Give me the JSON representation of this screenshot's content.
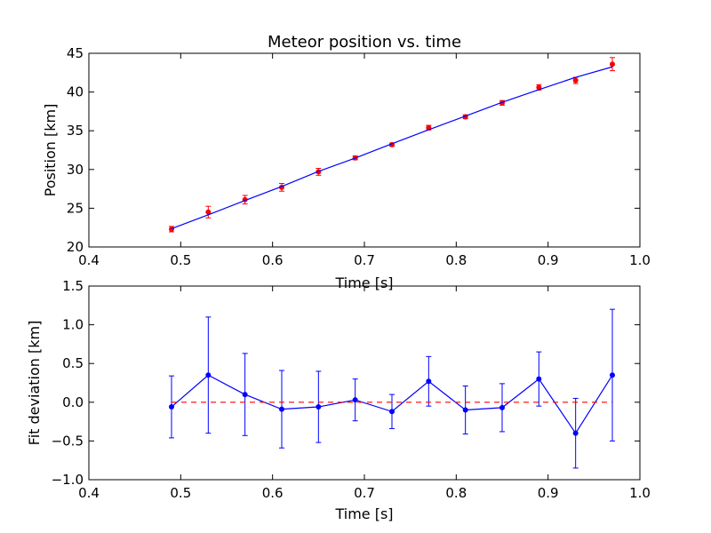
{
  "chart_data": [
    {
      "type": "scatter",
      "title": "Meteor position vs. time",
      "xlabel": "Time [s]",
      "ylabel": "Position [km]",
      "xlim": [
        0.4,
        1.0
      ],
      "ylim": [
        20,
        45
      ],
      "xticks": [
        "0.4",
        "0.5",
        "0.6",
        "0.7",
        "0.8",
        "0.9",
        "1.0"
      ],
      "yticks": [
        "20",
        "25",
        "30",
        "35",
        "40",
        "45"
      ],
      "grid": false,
      "series": [
        {
          "kind": "errorbar-points",
          "color": "#ff0000",
          "x": [
            0.49,
            0.53,
            0.57,
            0.61,
            0.65,
            0.69,
            0.73,
            0.77,
            0.81,
            0.85,
            0.89,
            0.93,
            0.97
          ],
          "y": [
            22.3,
            24.5,
            26.1,
            27.7,
            29.7,
            31.5,
            33.2,
            35.4,
            36.8,
            38.6,
            40.6,
            41.5,
            43.6
          ],
          "err": [
            0.35,
            0.75,
            0.55,
            0.5,
            0.45,
            0.25,
            0.2,
            0.3,
            0.25,
            0.3,
            0.35,
            0.4,
            0.85
          ]
        },
        {
          "kind": "line",
          "color": "#0000ff",
          "x": [
            0.49,
            0.53,
            0.57,
            0.61,
            0.65,
            0.69,
            0.73,
            0.77,
            0.81,
            0.85,
            0.89,
            0.93,
            0.97
          ],
          "y": [
            22.36,
            24.15,
            26.0,
            27.8,
            29.75,
            31.47,
            33.32,
            35.13,
            36.89,
            38.67,
            40.3,
            41.9,
            43.25
          ]
        }
      ]
    },
    {
      "type": "line",
      "title": "",
      "xlabel": "Time [s]",
      "ylabel": "Fit deviation [km]",
      "xlim": [
        0.4,
        1.0
      ],
      "ylim": [
        -1.0,
        1.5
      ],
      "xticks": [
        "0.4",
        "0.5",
        "0.6",
        "0.7",
        "0.8",
        "0.9",
        "1.0"
      ],
      "yticks": [
        "−1.0",
        "−0.5",
        "0.0",
        "0.5",
        "1.0",
        "1.5"
      ],
      "grid": false,
      "series": [
        {
          "kind": "errorbar-line",
          "color": "#0000ff",
          "x": [
            0.49,
            0.53,
            0.57,
            0.61,
            0.65,
            0.69,
            0.73,
            0.77,
            0.81,
            0.85,
            0.89,
            0.93,
            0.97
          ],
          "y": [
            -0.06,
            0.35,
            0.1,
            -0.09,
            -0.06,
            0.03,
            -0.12,
            0.27,
            -0.1,
            -0.07,
            0.3,
            -0.4,
            0.35
          ],
          "err": [
            0.4,
            0.75,
            0.53,
            0.5,
            0.46,
            0.27,
            0.22,
            0.32,
            0.31,
            0.31,
            0.35,
            0.45,
            0.85
          ]
        },
        {
          "kind": "reference-line",
          "color": "#ff0000",
          "style": "dashed",
          "x": [
            0.49,
            0.97
          ],
          "y": [
            0.0,
            0.0
          ]
        }
      ]
    }
  ]
}
